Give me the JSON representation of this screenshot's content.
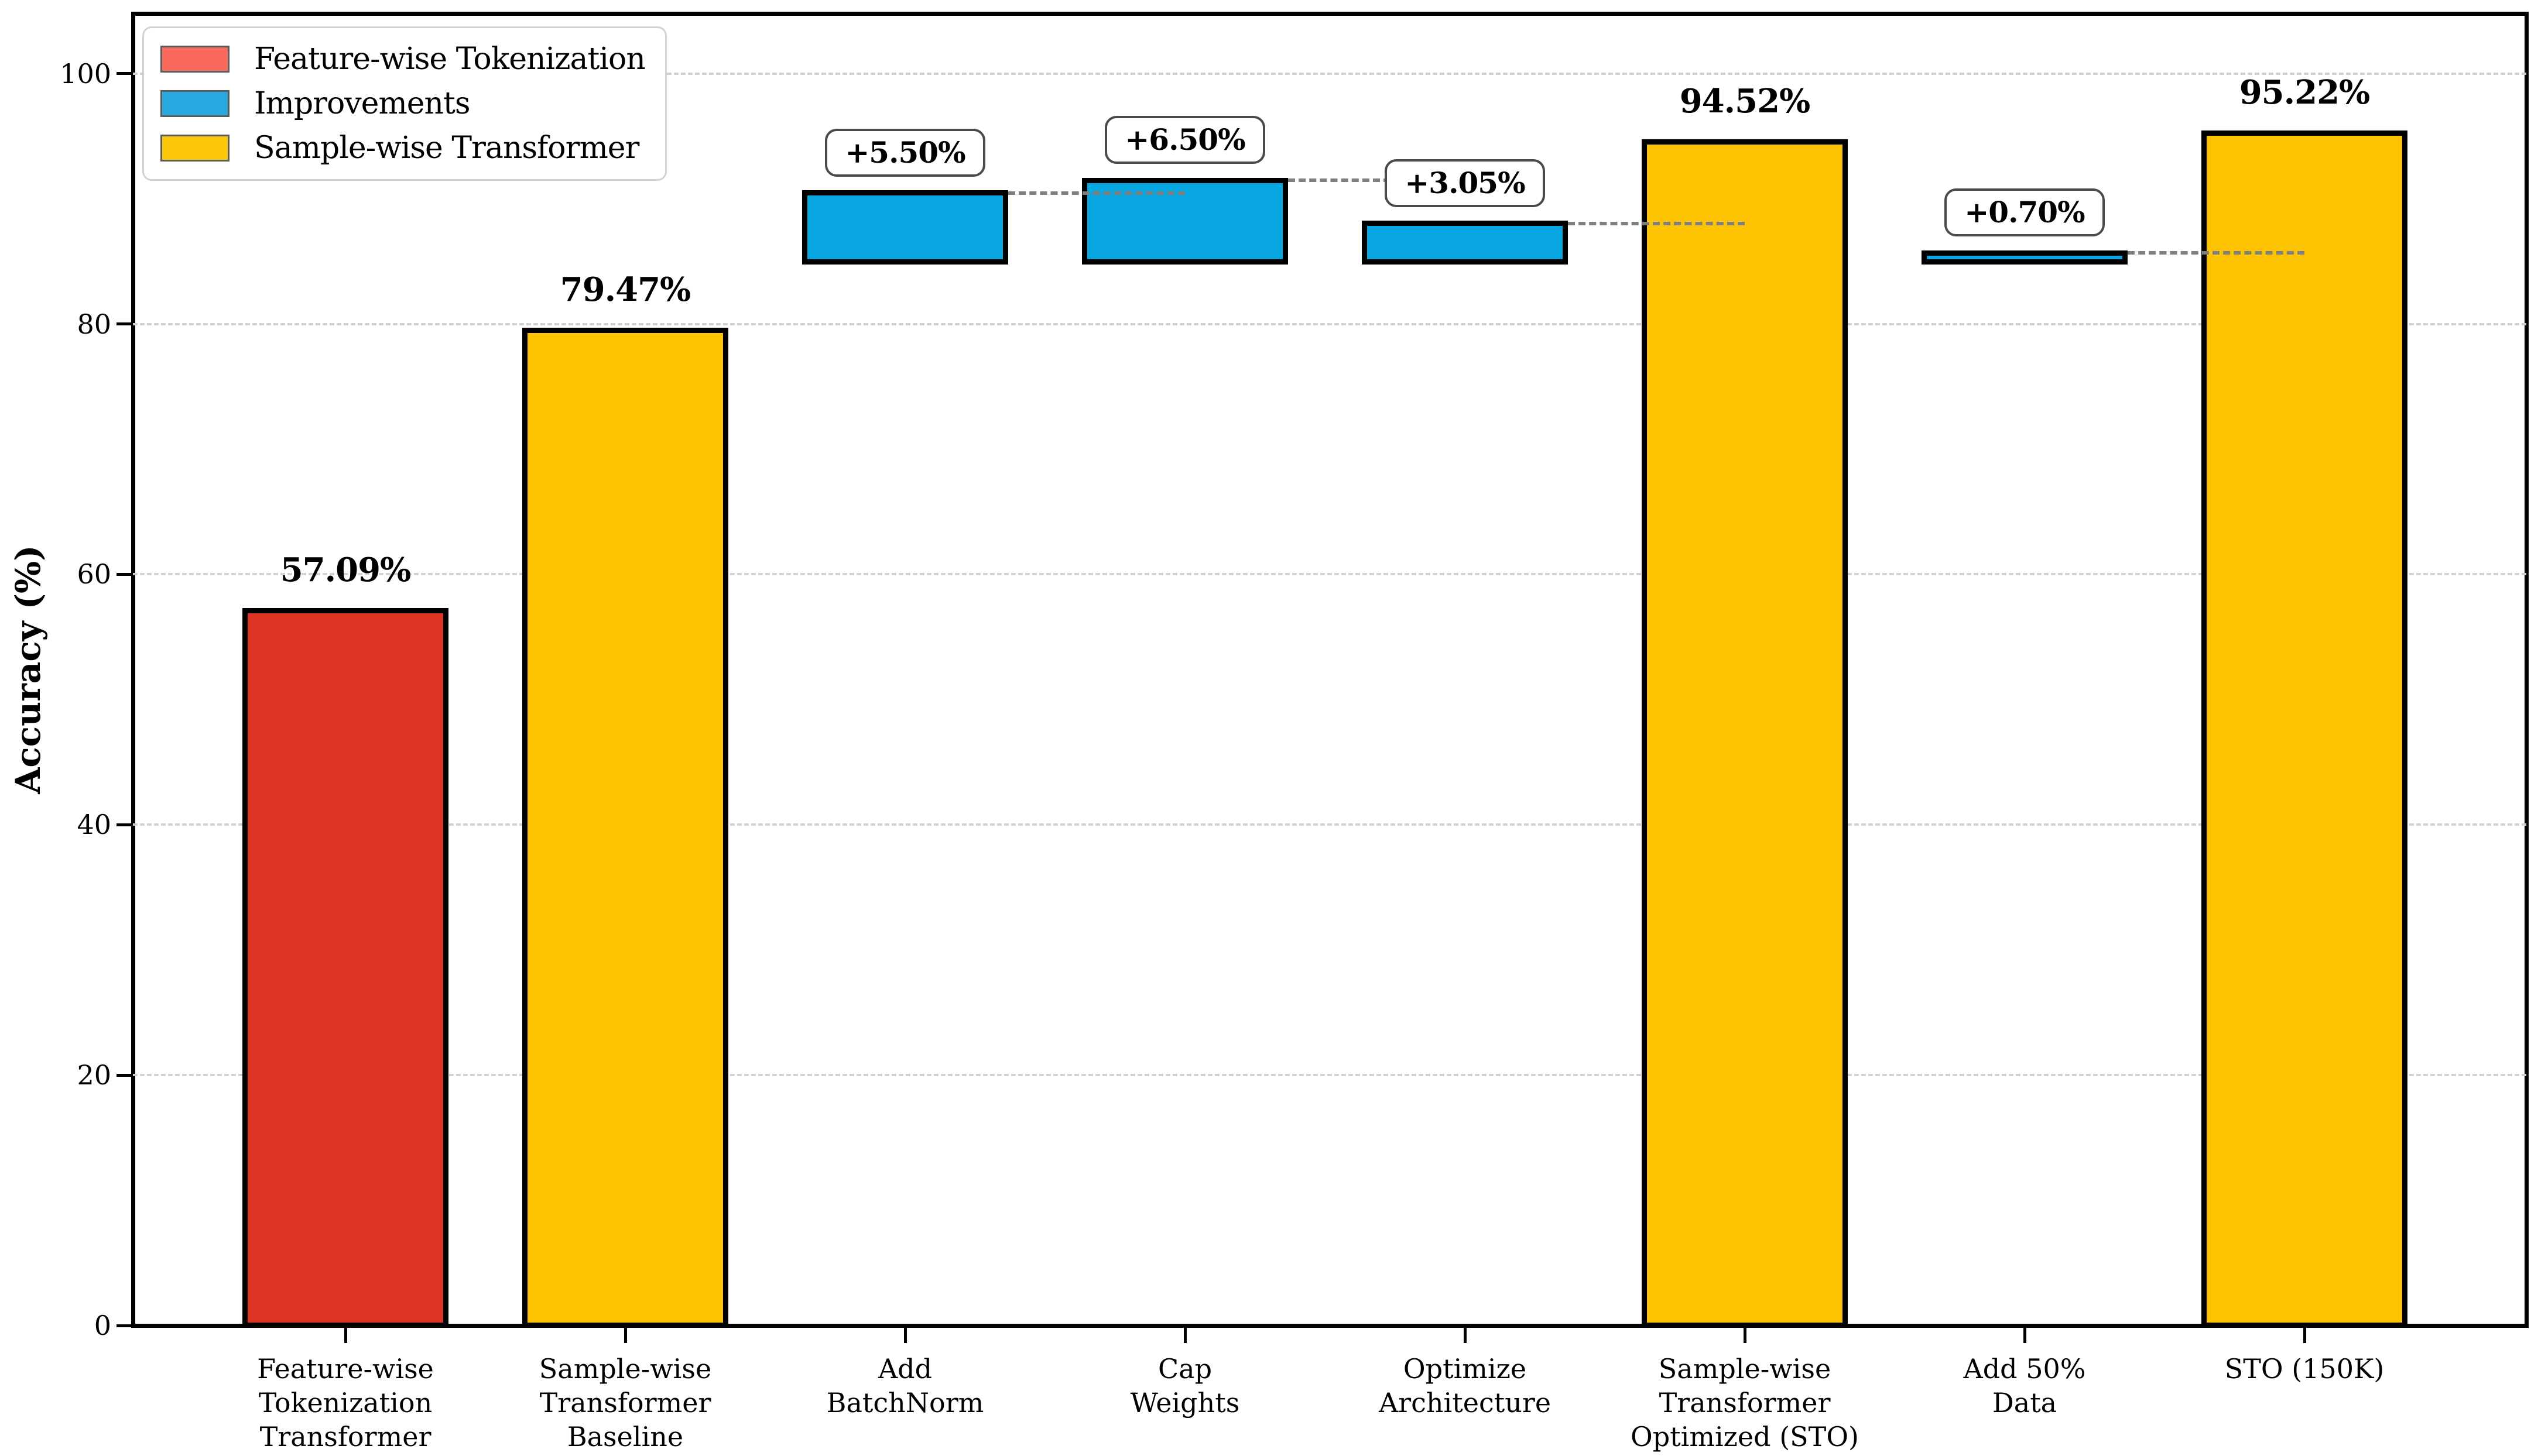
{
  "chart_data": {
    "type": "bar",
    "subtype": "waterfall",
    "title": "",
    "xlabel": "",
    "ylabel": "Accuracy (%)",
    "ylim": [
      0,
      104.8
    ],
    "yticks": [
      0,
      20,
      40,
      60,
      80,
      100
    ],
    "grid": "horizontal-dashed",
    "grid_color": "#d2d2d2",
    "bar_edge_color": "#000000",
    "connector_color": "#7f7f7f",
    "categories": [
      "Feature-wise\nTokenization\nTransformer",
      "Sample-wise\nTransformer\nBaseline",
      "Add\nBatchNorm",
      "Cap\nWeights",
      "Optimize\nArchitecture",
      "Sample-wise\nTransformer\nOptimized (STO)",
      "Add 50%\nData",
      "STO (150K)"
    ],
    "bars": [
      {
        "category": "Feature-wise\nTokenization\nTransformer",
        "base": 0,
        "top": 57.09,
        "label": "57.09%",
        "label_style": "plain",
        "color": "#dd3425",
        "series": "Feature-wise Tokenization"
      },
      {
        "category": "Sample-wise\nTransformer\nBaseline",
        "base": 0,
        "top": 79.47,
        "label": "79.47%",
        "label_style": "plain",
        "color": "#fec404",
        "series": "Sample-wise Transformer"
      },
      {
        "category": "Add\nBatchNorm",
        "base": 84.97,
        "top": 90.47,
        "label": "+5.50%",
        "label_style": "boxed",
        "color": "#09a7e2",
        "series": "Improvements"
      },
      {
        "category": "Cap\nWeights",
        "base": 84.97,
        "top": 91.47,
        "label": "+6.50%",
        "label_style": "boxed",
        "color": "#09a7e2",
        "series": "Improvements"
      },
      {
        "category": "Optimize\nArchitecture",
        "base": 84.97,
        "top": 88.02,
        "label": "+3.05%",
        "label_style": "boxed",
        "color": "#09a7e2",
        "series": "Improvements"
      },
      {
        "category": "Sample-wise\nTransformer\nOptimized (STO)",
        "base": 0,
        "top": 94.52,
        "label": "94.52%",
        "label_style": "plain",
        "color": "#fec404",
        "series": "Sample-wise Transformer"
      },
      {
        "category": "Add 50%\nData",
        "base": 84.97,
        "top": 85.67,
        "label": "+0.70%",
        "label_style": "boxed",
        "color": "#09a7e2",
        "series": "Improvements"
      },
      {
        "category": "STO (150K)",
        "base": 0,
        "top": 95.22,
        "label": "95.22%",
        "label_style": "plain",
        "color": "#fec404",
        "series": "Sample-wise Transformer"
      }
    ],
    "connectors": [
      {
        "from_bar": 2,
        "to_bar": 3,
        "level": 90.47
      },
      {
        "from_bar": 3,
        "to_bar": 4,
        "level": 91.47
      },
      {
        "from_bar": 4,
        "to_bar": 5,
        "level": 88.02
      },
      {
        "from_bar": 6,
        "to_bar": 7,
        "level": 85.67
      }
    ],
    "legend": {
      "position": "upper-left",
      "entries": [
        {
          "label": "Feature-wise Tokenization",
          "color": "#f9695c"
        },
        {
          "label": "Improvements",
          "color": "#29a9e0"
        },
        {
          "label": "Sample-wise Transformer",
          "color": "#fbc708"
        }
      ]
    }
  }
}
